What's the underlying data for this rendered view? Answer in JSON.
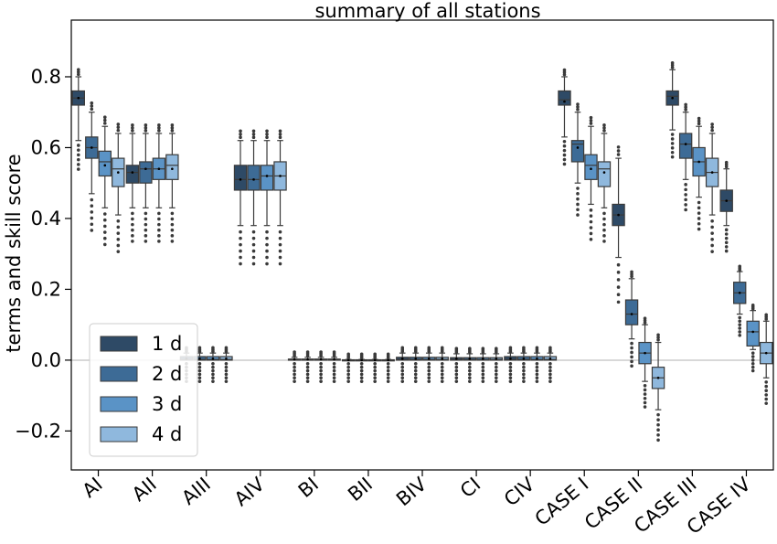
{
  "chart_data": {
    "type": "box",
    "title": "summary of all stations",
    "xlabel": "",
    "ylabel": "terms and skill score",
    "ylim": [
      -0.31,
      0.96
    ],
    "yticks": [
      -0.2,
      0.0,
      0.2,
      0.4,
      0.6,
      0.8
    ],
    "ytick_labels": [
      "−0.2",
      "0.0",
      "0.2",
      "0.4",
      "0.6",
      "0.8"
    ],
    "zero_line": true,
    "legend": {
      "position": "lower-left",
      "entries": [
        "1 d",
        "2 d",
        "3 d",
        "4 d"
      ]
    },
    "colors": [
      "#2e4a66",
      "#3d6b96",
      "#5a93c6",
      "#8fb8dd"
    ],
    "categories": [
      "AI",
      "AII",
      "AIII",
      "AIV",
      "BI",
      "BII",
      "BIV",
      "CI",
      "CIV",
      "CASE I",
      "CASE II",
      "CASE III",
      "CASE IV"
    ],
    "series": [
      {
        "name": "1 d",
        "boxes": [
          {
            "wlo": 0.62,
            "q1": 0.72,
            "med": 0.74,
            "q3": 0.76,
            "whi": 0.8,
            "mean": 0.74
          },
          {
            "wlo": 0.43,
            "q1": 0.5,
            "med": 0.53,
            "q3": 0.55,
            "whi": 0.64,
            "mean": 0.53
          },
          {
            "wlo": 0.0,
            "q1": 0.0,
            "med": 0.002,
            "q3": 0.01,
            "whi": 0.02,
            "mean": 0.004
          },
          {
            "wlo": 0.38,
            "q1": 0.48,
            "med": 0.51,
            "q3": 0.55,
            "whi": 0.62,
            "mean": 0.51
          },
          {
            "wlo": 0.0,
            "q1": 0.0,
            "med": 0.001,
            "q3": 0.003,
            "whi": 0.008,
            "mean": 0.002
          },
          {
            "wlo": 0.0,
            "q1": 0.0,
            "med": 0.0,
            "q3": 0.001,
            "whi": 0.002,
            "mean": 0.0
          },
          {
            "wlo": 0.0,
            "q1": 0.0,
            "med": 0.002,
            "q3": 0.008,
            "whi": 0.02,
            "mean": 0.004
          },
          {
            "wlo": 0.0,
            "q1": 0.0,
            "med": 0.002,
            "q3": 0.007,
            "whi": 0.018,
            "mean": 0.004
          },
          {
            "wlo": 0.0,
            "q1": 0.0,
            "med": 0.002,
            "q3": 0.01,
            "whi": 0.02,
            "mean": 0.004
          },
          {
            "wlo": 0.63,
            "q1": 0.72,
            "med": 0.735,
            "q3": 0.76,
            "whi": 0.8,
            "mean": 0.73
          },
          {
            "wlo": 0.29,
            "q1": 0.38,
            "med": 0.41,
            "q3": 0.44,
            "whi": 0.57,
            "mean": 0.41
          },
          {
            "wlo": 0.65,
            "q1": 0.72,
            "med": 0.745,
            "q3": 0.76,
            "whi": 0.82,
            "mean": 0.74
          },
          {
            "wlo": 0.38,
            "q1": 0.42,
            "med": 0.45,
            "q3": 0.48,
            "whi": 0.54,
            "mean": 0.45
          }
        ]
      },
      {
        "name": "2 d",
        "boxes": [
          {
            "wlo": 0.47,
            "q1": 0.57,
            "med": 0.6,
            "q3": 0.63,
            "whi": 0.7,
            "mean": 0.6
          },
          {
            "wlo": 0.43,
            "q1": 0.5,
            "med": 0.54,
            "q3": 0.56,
            "whi": 0.64,
            "mean": 0.54
          },
          {
            "wlo": 0.0,
            "q1": 0.0,
            "med": 0.002,
            "q3": 0.01,
            "whi": 0.02,
            "mean": 0.004
          },
          {
            "wlo": 0.38,
            "q1": 0.48,
            "med": 0.51,
            "q3": 0.55,
            "whi": 0.62,
            "mean": 0.51
          },
          {
            "wlo": 0.0,
            "q1": 0.0,
            "med": 0.001,
            "q3": 0.003,
            "whi": 0.008,
            "mean": 0.002
          },
          {
            "wlo": 0.0,
            "q1": 0.0,
            "med": 0.0,
            "q3": 0.001,
            "whi": 0.002,
            "mean": 0.0
          },
          {
            "wlo": 0.0,
            "q1": 0.0,
            "med": 0.002,
            "q3": 0.008,
            "whi": 0.02,
            "mean": 0.004
          },
          {
            "wlo": 0.0,
            "q1": 0.0,
            "med": 0.002,
            "q3": 0.007,
            "whi": 0.018,
            "mean": 0.004
          },
          {
            "wlo": 0.0,
            "q1": 0.0,
            "med": 0.002,
            "q3": 0.01,
            "whi": 0.02,
            "mean": 0.004
          },
          {
            "wlo": 0.5,
            "q1": 0.56,
            "med": 0.61,
            "q3": 0.62,
            "whi": 0.7,
            "mean": 0.6
          },
          {
            "wlo": 0.06,
            "q1": 0.1,
            "med": 0.13,
            "q3": 0.17,
            "whi": 0.23,
            "mean": 0.13
          },
          {
            "wlo": 0.51,
            "q1": 0.57,
            "med": 0.61,
            "q3": 0.64,
            "whi": 0.7,
            "mean": 0.61
          },
          {
            "wlo": 0.13,
            "q1": 0.16,
            "med": 0.19,
            "q3": 0.22,
            "whi": 0.25,
            "mean": 0.19
          }
        ]
      },
      {
        "name": "3 d",
        "boxes": [
          {
            "wlo": 0.43,
            "q1": 0.52,
            "med": 0.56,
            "q3": 0.59,
            "whi": 0.66,
            "mean": 0.55
          },
          {
            "wlo": 0.43,
            "q1": 0.51,
            "med": 0.54,
            "q3": 0.57,
            "whi": 0.64,
            "mean": 0.54
          },
          {
            "wlo": 0.0,
            "q1": 0.0,
            "med": 0.002,
            "q3": 0.01,
            "whi": 0.02,
            "mean": 0.004
          },
          {
            "wlo": 0.38,
            "q1": 0.48,
            "med": 0.52,
            "q3": 0.55,
            "whi": 0.62,
            "mean": 0.52
          },
          {
            "wlo": 0.0,
            "q1": 0.0,
            "med": 0.001,
            "q3": 0.003,
            "whi": 0.008,
            "mean": 0.002
          },
          {
            "wlo": 0.0,
            "q1": 0.0,
            "med": 0.0,
            "q3": 0.001,
            "whi": 0.002,
            "mean": 0.0
          },
          {
            "wlo": 0.0,
            "q1": 0.0,
            "med": 0.002,
            "q3": 0.008,
            "whi": 0.02,
            "mean": 0.004
          },
          {
            "wlo": 0.0,
            "q1": 0.0,
            "med": 0.002,
            "q3": 0.007,
            "whi": 0.018,
            "mean": 0.004
          },
          {
            "wlo": 0.0,
            "q1": 0.0,
            "med": 0.002,
            "q3": 0.01,
            "whi": 0.02,
            "mean": 0.004
          },
          {
            "wlo": 0.44,
            "q1": 0.51,
            "med": 0.55,
            "q3": 0.58,
            "whi": 0.66,
            "mean": 0.54
          },
          {
            "wlo": -0.06,
            "q1": -0.01,
            "med": 0.02,
            "q3": 0.05,
            "whi": 0.1,
            "mean": 0.02
          },
          {
            "wlo": 0.46,
            "q1": 0.52,
            "med": 0.56,
            "q3": 0.6,
            "whi": 0.66,
            "mean": 0.56
          },
          {
            "wlo": 0.03,
            "q1": 0.04,
            "med": 0.08,
            "q3": 0.11,
            "whi": 0.14,
            "mean": 0.08
          }
        ]
      },
      {
        "name": "4 d",
        "boxes": [
          {
            "wlo": 0.41,
            "q1": 0.49,
            "med": 0.54,
            "q3": 0.57,
            "whi": 0.64,
            "mean": 0.53
          },
          {
            "wlo": 0.43,
            "q1": 0.51,
            "med": 0.55,
            "q3": 0.58,
            "whi": 0.64,
            "mean": 0.54
          },
          {
            "wlo": 0.0,
            "q1": 0.0,
            "med": 0.002,
            "q3": 0.01,
            "whi": 0.02,
            "mean": 0.004
          },
          {
            "wlo": 0.38,
            "q1": 0.48,
            "med": 0.52,
            "q3": 0.56,
            "whi": 0.62,
            "mean": 0.52
          },
          {
            "wlo": 0.0,
            "q1": 0.0,
            "med": 0.001,
            "q3": 0.003,
            "whi": 0.008,
            "mean": 0.002
          },
          {
            "wlo": 0.0,
            "q1": 0.0,
            "med": 0.0,
            "q3": 0.001,
            "whi": 0.002,
            "mean": 0.0
          },
          {
            "wlo": 0.0,
            "q1": 0.0,
            "med": 0.002,
            "q3": 0.008,
            "whi": 0.02,
            "mean": 0.004
          },
          {
            "wlo": 0.0,
            "q1": 0.0,
            "med": 0.002,
            "q3": 0.007,
            "whi": 0.018,
            "mean": 0.004
          },
          {
            "wlo": 0.0,
            "q1": 0.0,
            "med": 0.002,
            "q3": 0.01,
            "whi": 0.02,
            "mean": 0.004
          },
          {
            "wlo": 0.43,
            "q1": 0.49,
            "med": 0.54,
            "q3": 0.56,
            "whi": 0.64,
            "mean": 0.53
          },
          {
            "wlo": -0.14,
            "q1": -0.08,
            "med": -0.05,
            "q3": -0.02,
            "whi": 0.05,
            "mean": -0.05
          },
          {
            "wlo": 0.41,
            "q1": 0.49,
            "med": 0.53,
            "q3": 0.57,
            "whi": 0.64,
            "mean": 0.53
          },
          {
            "wlo": -0.05,
            "q1": -0.01,
            "med": 0.02,
            "q3": 0.05,
            "whi": 0.11,
            "mean": 0.02
          }
        ]
      }
    ]
  }
}
